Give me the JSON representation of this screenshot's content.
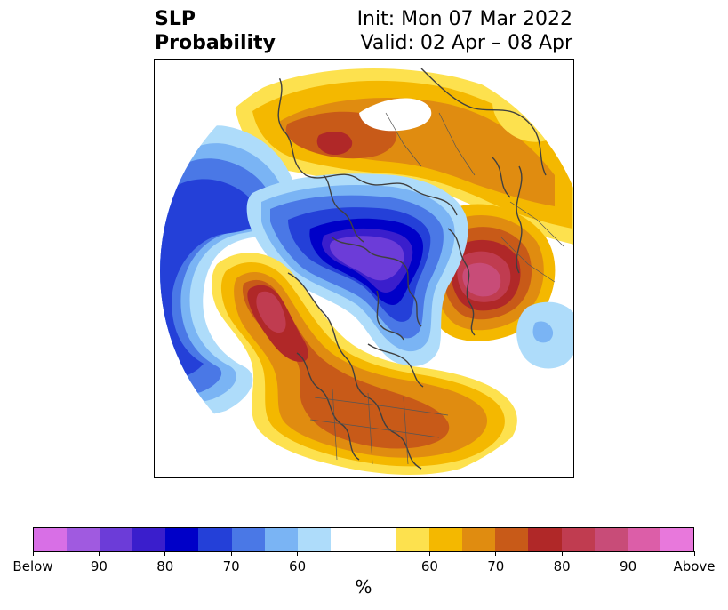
{
  "title": {
    "variable": "SLP",
    "product": "Probability",
    "init": "Init: Mon 07 Mar 2022",
    "valid": "Valid: 02 Apr – 08 Apr"
  },
  "colorbar": {
    "colors": [
      "#d86fe6",
      "#a05ae0",
      "#6c3cd8",
      "#3a1ecc",
      "#0000c8",
      "#2440d8",
      "#4a78e6",
      "#7ab4f4",
      "#aedcfa",
      "#ffffff",
      "#ffffff",
      "#fde14e",
      "#f4b800",
      "#e08c10",
      "#c85a18",
      "#b02828",
      "#c03c50",
      "#c84c78",
      "#dc5ea8",
      "#e878dc"
    ],
    "tick_labels": [
      "Below",
      "90",
      "80",
      "70",
      "60",
      "",
      "60",
      "70",
      "80",
      "90",
      "Above"
    ],
    "units": "%"
  }
}
